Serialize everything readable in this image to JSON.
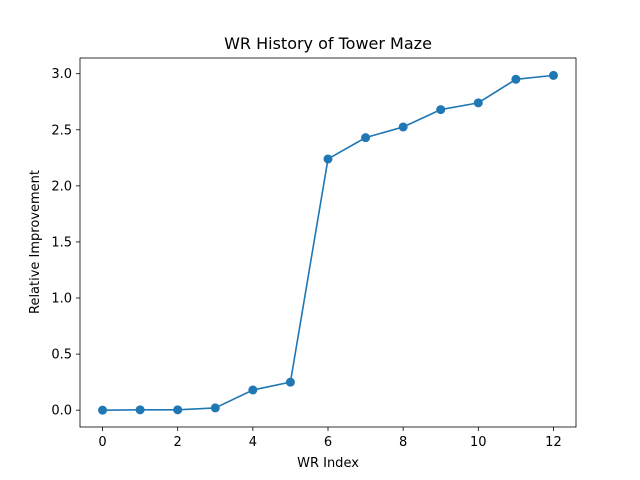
{
  "chart_data": {
    "type": "line",
    "title": "WR History of Tower Maze",
    "xlabel": "WR Index",
    "ylabel": "Relative Improvement",
    "x": [
      0,
      1,
      2,
      3,
      4,
      5,
      6,
      7,
      8,
      9,
      10,
      11,
      12
    ],
    "series": [
      {
        "values": [
          0.0,
          0.003,
          0.003,
          0.02,
          0.18,
          0.25,
          2.24,
          2.43,
          2.525,
          2.68,
          2.74,
          2.95,
          2.985
        ]
      }
    ],
    "xlim": [
      -0.6,
      12.6
    ],
    "ylim": [
      -0.15,
      3.14
    ],
    "xticks": [
      "0",
      "2",
      "4",
      "6",
      "8",
      "10",
      "12"
    ],
    "yticks": [
      "0.0",
      "0.5",
      "1.0",
      "1.5",
      "2.0",
      "2.5",
      "3.0"
    ],
    "grid": false,
    "legend": "none",
    "colors": {
      "series": "#1f77b4",
      "axis": "#000000",
      "background": "#ffffff"
    }
  }
}
